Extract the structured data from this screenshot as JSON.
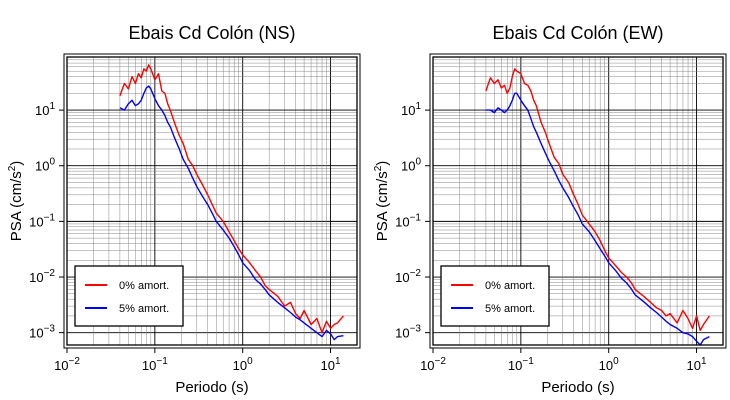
{
  "chart_data": [
    {
      "type": "line",
      "title": "Ebais Cd Colón (NS)",
      "xlabel": "Periodo (s)",
      "ylabel_main": "PSA (cm/s",
      "ylabel_sup": "2",
      "ylabel_close": ")",
      "xscale": "log",
      "yscale": "log",
      "xlim": [
        0.01,
        20
      ],
      "ylim": [
        0.0006,
        90
      ],
      "grid": true,
      "legend_position": "bottom-left",
      "x_ticks": [
        {
          "base": "10",
          "exp": "−2"
        },
        {
          "base": "10",
          "exp": "−1"
        },
        {
          "base": "10",
          "exp": "0"
        },
        {
          "base": "10",
          "exp": "1"
        }
      ],
      "y_ticks": [
        {
          "base": "10",
          "exp": "−3"
        },
        {
          "base": "10",
          "exp": "−2"
        },
        {
          "base": "10",
          "exp": "−1"
        },
        {
          "base": "10",
          "exp": "0"
        },
        {
          "base": "10",
          "exp": "1"
        }
      ],
      "x": [
        0.04,
        0.045,
        0.05,
        0.055,
        0.06,
        0.065,
        0.07,
        0.075,
        0.08,
        0.085,
        0.09,
        0.1,
        0.11,
        0.12,
        0.13,
        0.14,
        0.15,
        0.17,
        0.19,
        0.21,
        0.24,
        0.27,
        0.3,
        0.35,
        0.4,
        0.45,
        0.5,
        0.6,
        0.7,
        0.8,
        0.9,
        1.0,
        1.2,
        1.4,
        1.6,
        1.8,
        2.0,
        2.5,
        3.0,
        3.5,
        4.0,
        4.5,
        5.0,
        6.0,
        7.0,
        8.0,
        9.0,
        10.0,
        11.0,
        12.0,
        14.0
      ],
      "series": [
        {
          "name": "0% amort.",
          "color": "#ff0000",
          "values": [
            18,
            30,
            24,
            40,
            30,
            45,
            38,
            55,
            50,
            65,
            55,
            35,
            45,
            22,
            20,
            13,
            10,
            5.5,
            3.5,
            2.5,
            1.3,
            1.0,
            0.7,
            0.45,
            0.3,
            0.2,
            0.14,
            0.1,
            0.065,
            0.045,
            0.032,
            0.025,
            0.018,
            0.013,
            0.01,
            0.007,
            0.006,
            0.0045,
            0.003,
            0.0035,
            0.0022,
            0.0018,
            0.0025,
            0.0014,
            0.0018,
            0.001,
            0.0016,
            0.0012,
            0.0014,
            0.0015,
            0.002
          ]
        },
        {
          "name": "5% amort.",
          "color": "#0000ff",
          "values": [
            11,
            10,
            13,
            15,
            12,
            13,
            15,
            20,
            25,
            27,
            24,
            16,
            12,
            10,
            8,
            6,
            5,
            3,
            2,
            1.3,
            0.9,
            0.6,
            0.42,
            0.28,
            0.2,
            0.14,
            0.1,
            0.07,
            0.05,
            0.035,
            0.025,
            0.018,
            0.013,
            0.009,
            0.0075,
            0.006,
            0.0048,
            0.0035,
            0.0028,
            0.0023,
            0.0019,
            0.0017,
            0.0015,
            0.0012,
            0.001,
            0.00085,
            0.0011,
            0.00095,
            0.00075,
            0.00085,
            0.00088
          ]
        }
      ]
    },
    {
      "type": "line",
      "title": "Ebais Cd Colón (EW)",
      "xlabel": "Periodo (s)",
      "ylabel_main": "PSA (cm/s",
      "ylabel_sup": "2",
      "ylabel_close": ")",
      "xscale": "log",
      "yscale": "log",
      "xlim": [
        0.01,
        20
      ],
      "ylim": [
        0.0006,
        90
      ],
      "grid": true,
      "legend_position": "bottom-left",
      "x_ticks": [
        {
          "base": "10",
          "exp": "−2"
        },
        {
          "base": "10",
          "exp": "−1"
        },
        {
          "base": "10",
          "exp": "0"
        },
        {
          "base": "10",
          "exp": "1"
        }
      ],
      "y_ticks": [
        {
          "base": "10",
          "exp": "−3"
        },
        {
          "base": "10",
          "exp": "−2"
        },
        {
          "base": "10",
          "exp": "−1"
        },
        {
          "base": "10",
          "exp": "0"
        },
        {
          "base": "10",
          "exp": "1"
        }
      ],
      "x": [
        0.04,
        0.045,
        0.05,
        0.055,
        0.06,
        0.065,
        0.07,
        0.075,
        0.08,
        0.085,
        0.09,
        0.1,
        0.11,
        0.12,
        0.13,
        0.14,
        0.15,
        0.17,
        0.19,
        0.21,
        0.24,
        0.27,
        0.3,
        0.35,
        0.4,
        0.45,
        0.5,
        0.6,
        0.7,
        0.8,
        0.9,
        1.0,
        1.2,
        1.4,
        1.6,
        1.8,
        2.0,
        2.5,
        3.0,
        3.5,
        4.0,
        4.5,
        5.0,
        6.0,
        7.0,
        8.0,
        9.0,
        10.0,
        11.0,
        12.0,
        14.0
      ],
      "series": [
        {
          "name": "0% amort.",
          "color": "#ff0000",
          "values": [
            22,
            38,
            30,
            35,
            25,
            28,
            20,
            25,
            40,
            55,
            50,
            45,
            30,
            28,
            22,
            15,
            12,
            6,
            4,
            2.5,
            1.4,
            1.1,
            0.7,
            0.5,
            0.3,
            0.2,
            0.13,
            0.09,
            0.065,
            0.045,
            0.03,
            0.022,
            0.016,
            0.012,
            0.01,
            0.008,
            0.006,
            0.0045,
            0.0035,
            0.0028,
            0.0025,
            0.002,
            0.0022,
            0.0015,
            0.0025,
            0.0018,
            0.0012,
            0.002,
            0.0011,
            0.0014,
            0.002
          ]
        },
        {
          "name": "5% amort.",
          "color": "#0000ff",
          "values": [
            10,
            10,
            9,
            11,
            10,
            9,
            10,
            12,
            15,
            20,
            20,
            15,
            12,
            10,
            7,
            5,
            4,
            2.5,
            1.7,
            1.2,
            0.8,
            0.55,
            0.4,
            0.27,
            0.18,
            0.13,
            0.09,
            0.065,
            0.045,
            0.032,
            0.024,
            0.018,
            0.013,
            0.0095,
            0.0078,
            0.0062,
            0.0048,
            0.0036,
            0.0028,
            0.0023,
            0.0019,
            0.0016,
            0.0014,
            0.0012,
            0.001,
            0.00095,
            0.00085,
            0.0007,
            0.0006,
            0.00075,
            0.00085
          ]
        }
      ]
    }
  ]
}
